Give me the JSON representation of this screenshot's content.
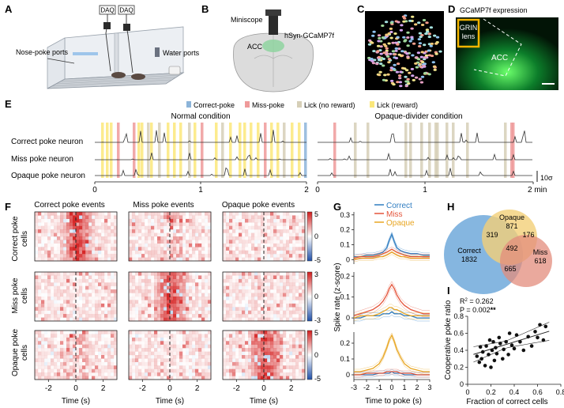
{
  "panels": {
    "A": {
      "label": "A",
      "daq": [
        "DAQ",
        "DAQ"
      ],
      "nose_poke_ports": "Nose-poke ports",
      "water_ports": "Water ports"
    },
    "B": {
      "label": "B",
      "miniscope": "Miniscope",
      "virus": "hSyn-GCaMP7f",
      "region": "ACC"
    },
    "C": {
      "label": "C"
    },
    "D": {
      "label": "D",
      "title": "GCaMP7f expression",
      "grin_line1": "GRIN",
      "grin_line2": "lens",
      "region": "ACC"
    },
    "E": {
      "label": "E",
      "legend": [
        {
          "name": "Correct-poke",
          "color": "#8cb4d9"
        },
        {
          "name": "Miss-poke",
          "color": "#ef9a9a"
        },
        {
          "name": "Lick (no reward)",
          "color": "#d6cfb7"
        },
        {
          "name": "Lick (reward)",
          "color": "#fbe77a"
        }
      ],
      "normal_title": "Normal condition",
      "opaque_title": "Opaque-divider condition",
      "rows": [
        "Correct poke neuron",
        "Miss poke neuron",
        "Opaque poke neuron"
      ],
      "normal_ticks": [
        "0",
        "1",
        "2"
      ],
      "opaque_ticks": [
        "0",
        "1",
        "2 min"
      ],
      "scalebar": "10σ"
    },
    "F": {
      "label": "F",
      "col_titles": [
        "Correct poke events",
        "Miss poke events",
        "Opaque poke events"
      ],
      "row_labels": [
        [
          "Correct poke",
          "cells"
        ],
        [
          "Miss poke",
          "cells"
        ],
        [
          "Opaque poke",
          "cells"
        ]
      ],
      "x_ticks": [
        "-2",
        "0",
        "2"
      ],
      "xlabel": "Time (s)",
      "colorbars": [
        {
          "max": "5",
          "zero": "0",
          "min": "-5"
        },
        {
          "max": "3",
          "zero": "0",
          "min": "-3"
        },
        {
          "max": "5",
          "zero": "0",
          "min": "-5"
        }
      ]
    },
    "G": {
      "label": "G",
      "legend": [
        {
          "name": "Correct",
          "color": "#2f7dc1"
        },
        {
          "name": "Miss",
          "color": "#e4543a"
        },
        {
          "name": "Opaque",
          "color": "#e8a623"
        }
      ],
      "ylabel": "Spike rate (z-score)",
      "xlabel": "Time to poke (s)",
      "x_ticks": [
        "-3",
        "-2",
        "-1",
        "0",
        "1",
        "2",
        "3"
      ],
      "y_ticks_top": [
        "0.3",
        "0.2",
        "0.1",
        "0"
      ],
      "y_ticks_mid": [
        "0.2",
        "0.1",
        "0"
      ],
      "y_ticks_bot": [
        "0.2",
        "0.1",
        "0"
      ]
    },
    "H": {
      "label": "H",
      "sets": [
        {
          "name": "Opaque",
          "count": "871",
          "color": "#f2cf78"
        },
        {
          "name": "Correct",
          "count": "1832",
          "color": "#78aedd"
        },
        {
          "name": "Miss",
          "count": "618",
          "color": "#e38c7c"
        }
      ],
      "overlaps": {
        "correct_opaque": "319",
        "opaque_miss": "176",
        "all": "492",
        "correct_miss": "665"
      }
    },
    "I": {
      "label": "I",
      "stats_r2_main": "R",
      "stats_r2_sup": "2",
      "stats_r2_value": " = 0.262",
      "stats_p": "P = 0.002",
      "stats_stars": "**",
      "ylabel": "Cooperative poke ratio",
      "xlabel": "Fraction of correct cells",
      "x_ticks": [
        "0",
        "0.2",
        "0.4",
        "0.6",
        "0.8"
      ],
      "y_ticks": [
        "0",
        "0.2",
        "0.4",
        "0.6",
        "0.8"
      ]
    }
  },
  "chart_data": [
    {
      "type": "line",
      "title": "G top: Correct poke cells",
      "xlabel": "Time to poke (s)",
      "ylabel": "Spike rate (z-score)",
      "xlim": [
        -3,
        3
      ],
      "ylim": [
        -0.03,
        0.32
      ],
      "x": [
        -3,
        -2.5,
        -2,
        -1.5,
        -1,
        -0.7,
        -0.4,
        -0.2,
        0,
        0.2,
        0.4,
        0.7,
        1,
        1.5,
        2,
        2.5,
        3
      ],
      "series": [
        {
          "name": "Correct",
          "values": [
            0.02,
            0.02,
            0.03,
            0.03,
            0.04,
            0.05,
            0.08,
            0.13,
            0.17,
            0.12,
            0.08,
            0.06,
            0.05,
            0.04,
            0.04,
            0.03,
            0.03
          ]
        },
        {
          "name": "Miss",
          "values": [
            0.01,
            0.02,
            0.02,
            0.02,
            0.03,
            0.04,
            0.05,
            0.06,
            0.07,
            0.06,
            0.05,
            0.04,
            0.03,
            0.02,
            0.02,
            0.02,
            0.02
          ]
        },
        {
          "name": "Opaque",
          "values": [
            0.0,
            0.01,
            0.01,
            0.01,
            0.02,
            0.02,
            0.03,
            0.04,
            0.05,
            0.04,
            0.03,
            0.02,
            0.02,
            0.01,
            0.01,
            0.01,
            0.01
          ]
        }
      ]
    },
    {
      "type": "line",
      "title": "G middle: Miss poke cells",
      "xlabel": "Time to poke (s)",
      "ylabel": "Spike rate (z-score)",
      "xlim": [
        -3,
        3
      ],
      "ylim": [
        -0.03,
        0.22
      ],
      "x": [
        -3,
        -2.5,
        -2,
        -1.5,
        -1,
        -0.7,
        -0.4,
        -0.2,
        0,
        0.2,
        0.4,
        0.7,
        1,
        1.5,
        2,
        2.5,
        3
      ],
      "series": [
        {
          "name": "Correct",
          "values": [
            0.0,
            0.0,
            0.01,
            0.01,
            0.01,
            0.02,
            0.02,
            0.02,
            0.03,
            0.02,
            0.02,
            0.02,
            0.01,
            0.01,
            0.0,
            0.0,
            0.0
          ]
        },
        {
          "name": "Miss",
          "values": [
            0.01,
            0.02,
            0.03,
            0.04,
            0.06,
            0.08,
            0.11,
            0.14,
            0.16,
            0.14,
            0.11,
            0.08,
            0.06,
            0.04,
            0.03,
            0.02,
            0.02
          ]
        },
        {
          "name": "Opaque",
          "values": [
            0.0,
            0.01,
            0.01,
            0.01,
            0.02,
            0.03,
            0.04,
            0.05,
            0.05,
            0.04,
            0.04,
            0.03,
            0.02,
            0.01,
            0.01,
            0.01,
            0.01
          ]
        }
      ]
    },
    {
      "type": "line",
      "title": "G bottom: Opaque poke cells",
      "xlabel": "Time to poke (s)",
      "ylabel": "Spike rate (z-score)",
      "xlim": [
        -3,
        3
      ],
      "ylim": [
        -0.03,
        0.27
      ],
      "x": [
        -3,
        -2.5,
        -2,
        -1.5,
        -1,
        -0.7,
        -0.4,
        -0.2,
        0,
        0.2,
        0.4,
        0.7,
        1,
        1.5,
        2,
        2.5,
        3
      ],
      "series": [
        {
          "name": "Correct",
          "values": [
            0.0,
            0.0,
            0.0,
            0.0,
            0.01,
            0.01,
            0.01,
            0.01,
            0.02,
            0.01,
            0.01,
            0.01,
            0.0,
            0.0,
            0.0,
            0.0,
            0.0
          ]
        },
        {
          "name": "Miss",
          "values": [
            0.0,
            0.0,
            0.01,
            0.01,
            0.01,
            0.01,
            0.02,
            0.02,
            0.02,
            0.02,
            0.02,
            0.01,
            0.01,
            0.01,
            0.0,
            0.0,
            0.0
          ]
        },
        {
          "name": "Opaque",
          "values": [
            0.02,
            0.02,
            0.03,
            0.04,
            0.07,
            0.11,
            0.17,
            0.22,
            0.25,
            0.21,
            0.16,
            0.11,
            0.07,
            0.04,
            0.03,
            0.02,
            0.02
          ]
        }
      ]
    },
    {
      "type": "scatter",
      "title": "I",
      "xlabel": "Fraction of correct cells",
      "ylabel": "Cooperative poke ratio",
      "xlim": [
        0,
        0.8
      ],
      "ylim": [
        0,
        0.8
      ],
      "x": [
        0.08,
        0.1,
        0.11,
        0.12,
        0.13,
        0.15,
        0.16,
        0.18,
        0.19,
        0.2,
        0.21,
        0.22,
        0.23,
        0.24,
        0.25,
        0.27,
        0.28,
        0.3,
        0.31,
        0.33,
        0.35,
        0.36,
        0.38,
        0.4,
        0.42,
        0.45,
        0.48,
        0.52,
        0.55,
        0.58,
        0.6,
        0.62,
        0.65,
        0.67
      ],
      "y": [
        0.33,
        0.26,
        0.44,
        0.3,
        0.38,
        0.22,
        0.45,
        0.35,
        0.52,
        0.2,
        0.4,
        0.5,
        0.28,
        0.43,
        0.36,
        0.55,
        0.48,
        0.3,
        0.41,
        0.5,
        0.35,
        0.6,
        0.46,
        0.42,
        0.58,
        0.5,
        0.4,
        0.56,
        0.45,
        0.62,
        0.55,
        0.7,
        0.52,
        0.68
      ],
      "fit": {
        "slope": 0.42,
        "intercept": 0.33
      }
    }
  ]
}
